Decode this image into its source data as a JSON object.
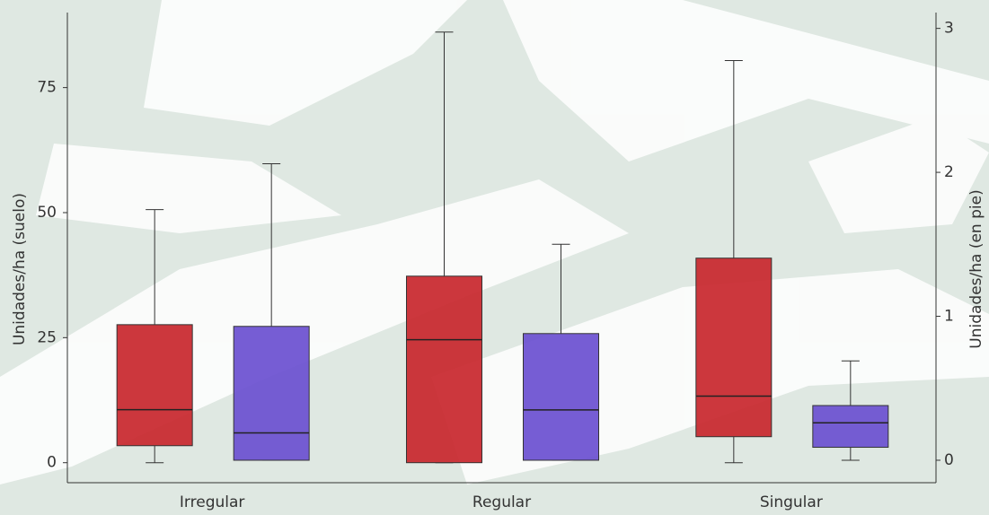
{
  "chart_data": {
    "type": "box",
    "categories": [
      "Irregular",
      "Regular",
      "Singular"
    ],
    "ylabel": "Unidades/ha (suelo)",
    "y2label": "Unidades/ha (en pie)",
    "ylim": [
      -4,
      90
    ],
    "yticks": [
      0,
      25,
      50,
      75
    ],
    "y2lim": [
      -0.156,
      3.11
    ],
    "y2ticks": [
      0,
      1,
      2,
      3
    ],
    "series": [
      {
        "color": "#c8262c",
        "axis": "y",
        "low": [
          0,
          0,
          0
        ],
        "q1": [
          3.4,
          0,
          5.2
        ],
        "median": [
          10.6,
          24.6,
          13.3
        ],
        "q3": [
          27.6,
          37.3,
          40.9
        ],
        "high": [
          50.6,
          86.1,
          80.4
        ]
      },
      {
        "color": "#6a4fd0",
        "axis": "y2",
        "low": [
          0,
          0,
          0
        ],
        "q1": [
          0,
          0,
          0.09
        ],
        "median": [
          0.19,
          0.35,
          0.26
        ],
        "q3": [
          0.93,
          0.88,
          0.38
        ],
        "high": [
          2.06,
          1.5,
          0.69
        ]
      }
    ]
  }
}
